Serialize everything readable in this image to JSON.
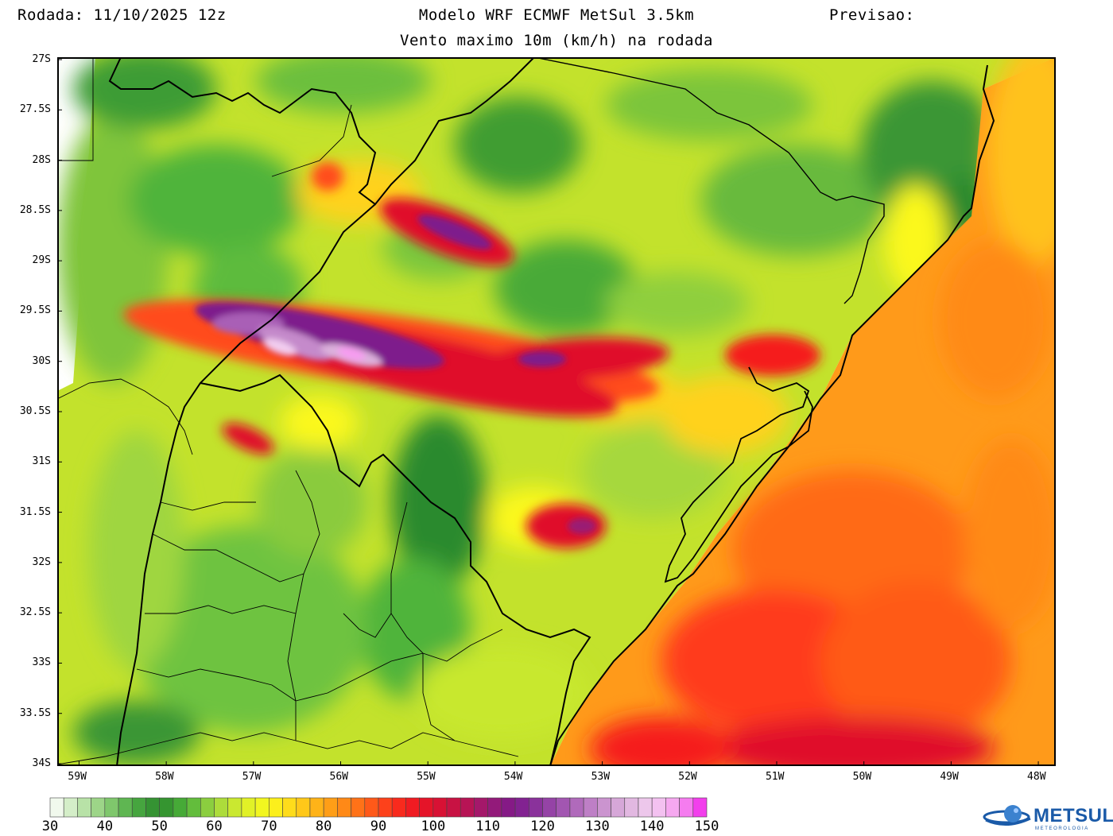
{
  "header": {
    "left": "Rodada: 11/10/2025 12z",
    "center": "Modelo WRF ECMWF MetSul 3.5km",
    "right": "Previsao:",
    "subtitle": "Vento maximo 10m (km/h) na rodada"
  },
  "map": {
    "lat_labels": [
      "27S",
      "27.5S",
      "28S",
      "28.5S",
      "29S",
      "29.5S",
      "30S",
      "30.5S",
      "31S",
      "31.5S",
      "32S",
      "32.5S",
      "33S",
      "33.5S",
      "34S"
    ],
    "lon_labels": [
      "59W",
      "58W",
      "57W",
      "56W",
      "55W",
      "54W",
      "53W",
      "52W",
      "51W",
      "50W",
      "49W",
      "48W"
    ],
    "lat_range": [
      -27,
      -34
    ],
    "lon_range": [
      -59.25,
      -47.8
    ]
  },
  "colorbar": {
    "labels": [
      "30",
      "40",
      "50",
      "60",
      "70",
      "80",
      "90",
      "100",
      "110",
      "120",
      "130",
      "140",
      "150"
    ],
    "min": 30,
    "max": 150,
    "colors": {
      "30": "#ffffff",
      "35": "#c6e8b6",
      "40": "#8fcf79",
      "45": "#4fae45",
      "50": "#2c8a2d",
      "55": "#4fb43a",
      "60": "#9fd640",
      "65": "#d8ee2a",
      "70": "#fbf81c",
      "75": "#ffd21a",
      "80": "#ffa817",
      "85": "#ff7e17",
      "90": "#ff4c1a",
      "95": "#f51e1e",
      "100": "#e0102c",
      "105": "#c0124a",
      "110": "#9a1a74",
      "115": "#7e1a8c",
      "120": "#8e3aa0",
      "125": "#a95fb6",
      "130": "#c58acb",
      "135": "#dcb0dc",
      "140": "#f2cef0",
      "145": "#f79bf0",
      "150": "#f020ea"
    }
  },
  "logo": {
    "text": "METSUL",
    "subtext": "METEOROLOGIA"
  }
}
